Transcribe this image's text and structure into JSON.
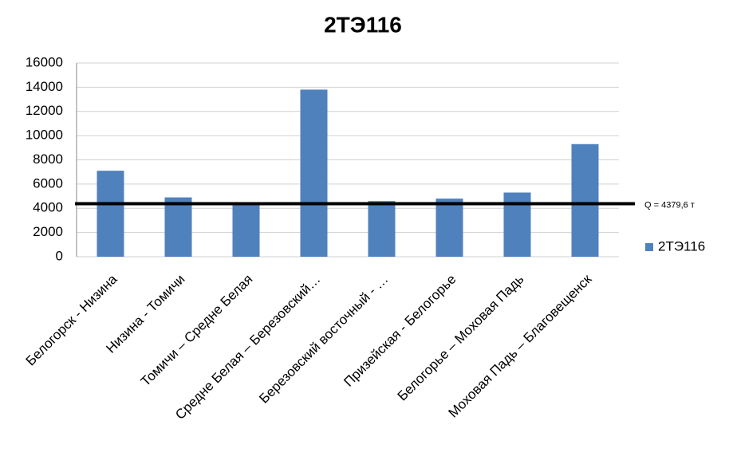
{
  "chart_data": {
    "type": "bar",
    "title": "2ТЭ116",
    "categories": [
      "Белогорск - Низина",
      "Низина - Томичи",
      "Томичи – Средне  Белая",
      "Средне  Белая – Березовский…",
      "Березовский восточный - …",
      "Призейская - Белогорье",
      "Белогорье – Моховая Падь",
      "Моховая Падь – Благовещенск"
    ],
    "series": [
      {
        "name": "2ТЭ116",
        "color": "#4f81bd",
        "values": [
          7100,
          4900,
          4300,
          13800,
          4600,
          4800,
          5300,
          9300
        ]
      }
    ],
    "ylim": [
      0,
      16000
    ],
    "yticks": [
      0,
      2000,
      4000,
      6000,
      8000,
      10000,
      12000,
      14000,
      16000
    ],
    "grid": true,
    "reference_line": {
      "value": 4379.6,
      "label": "Q = 4379,6 т"
    },
    "legend": "right"
  }
}
